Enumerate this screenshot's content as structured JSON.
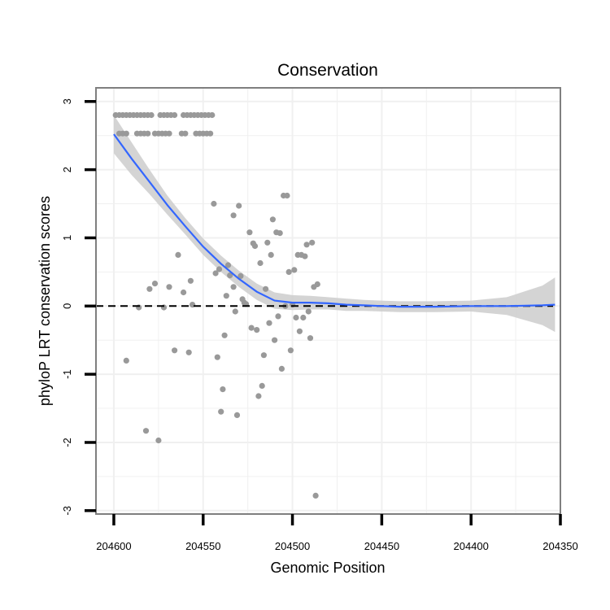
{
  "chart_data": {
    "type": "scatter",
    "title": "Conservation",
    "xlabel": "Genomic Position",
    "ylabel": "phyloP LRT conservation scores",
    "x_reversed": true,
    "xlim": [
      204350,
      204610
    ],
    "ylim": [
      -3.05,
      3.2
    ],
    "x_ticks": [
      204600,
      204550,
      204500,
      204450,
      204400,
      204350
    ],
    "y_ticks": [
      -3,
      -2,
      -1,
      0,
      1,
      2,
      3
    ],
    "grid": true,
    "reference_line": {
      "y": 0,
      "style": "dashed"
    },
    "colors": {
      "points": "#999999",
      "smooth": "#3366ff",
      "band": "#cccccc",
      "panel_border": "#7f7f7f",
      "grid": "#f0f0f0"
    },
    "points": [
      [
        204599,
        2.8
      ],
      [
        204597,
        2.8
      ],
      [
        204595,
        2.8
      ],
      [
        204593,
        2.8
      ],
      [
        204591,
        2.8
      ],
      [
        204589,
        2.8
      ],
      [
        204587,
        2.8
      ],
      [
        204585,
        2.8
      ],
      [
        204583,
        2.8
      ],
      [
        204581,
        2.8
      ],
      [
        204579,
        2.8
      ],
      [
        204574,
        2.8
      ],
      [
        204572,
        2.8
      ],
      [
        204570,
        2.8
      ],
      [
        204568,
        2.8
      ],
      [
        204566,
        2.8
      ],
      [
        204561,
        2.8
      ],
      [
        204559,
        2.8
      ],
      [
        204557,
        2.8
      ],
      [
        204555,
        2.8
      ],
      [
        204553,
        2.8
      ],
      [
        204551,
        2.8
      ],
      [
        204549,
        2.8
      ],
      [
        204547,
        2.8
      ],
      [
        204545,
        2.8
      ],
      [
        204597,
        2.53
      ],
      [
        204595,
        2.53
      ],
      [
        204593,
        2.53
      ],
      [
        204587,
        2.53
      ],
      [
        204585,
        2.53
      ],
      [
        204583,
        2.53
      ],
      [
        204581,
        2.53
      ],
      [
        204577,
        2.53
      ],
      [
        204575,
        2.53
      ],
      [
        204573,
        2.53
      ],
      [
        204571,
        2.53
      ],
      [
        204569,
        2.53
      ],
      [
        204562,
        2.53
      ],
      [
        204560,
        2.53
      ],
      [
        204554,
        2.53
      ],
      [
        204552,
        2.53
      ],
      [
        204550,
        2.53
      ],
      [
        204548,
        2.53
      ],
      [
        204546,
        2.53
      ],
      [
        204593,
        -0.8
      ],
      [
        204586,
        -0.02
      ],
      [
        204582,
        -1.83
      ],
      [
        204580,
        0.25
      ],
      [
        204577,
        0.33
      ],
      [
        204575,
        -1.97
      ],
      [
        204572,
        -0.02
      ],
      [
        204569,
        0.28
      ],
      [
        204566,
        -0.65
      ],
      [
        204564,
        0.75
      ],
      [
        204561,
        0.2
      ],
      [
        204558,
        -0.68
      ],
      [
        204557,
        0.37
      ],
      [
        204556,
        0.02
      ],
      [
        204544,
        1.5
      ],
      [
        204543,
        0.48
      ],
      [
        204542,
        -0.75
      ],
      [
        204541,
        0.54
      ],
      [
        204540,
        -1.55
      ],
      [
        204539,
        -1.22
      ],
      [
        204538,
        -0.43
      ],
      [
        204537,
        0.15
      ],
      [
        204536,
        0.6
      ],
      [
        204535,
        0.45
      ],
      [
        204533,
        1.33
      ],
      [
        204533,
        0.28
      ],
      [
        204532,
        -0.08
      ],
      [
        204531,
        -1.6
      ],
      [
        204530,
        1.47
      ],
      [
        204529,
        0.44
      ],
      [
        204528,
        0.1
      ],
      [
        204527,
        0.05
      ],
      [
        204526,
        0.03
      ],
      [
        204524,
        1.08
      ],
      [
        204523,
        -0.32
      ],
      [
        204522,
        0.92
      ],
      [
        204521,
        0.88
      ],
      [
        204520,
        -0.35
      ],
      [
        204519,
        -1.32
      ],
      [
        204518,
        0.63
      ],
      [
        204517,
        -1.17
      ],
      [
        204516,
        -0.72
      ],
      [
        204515,
        0.25
      ],
      [
        204514,
        0.93
      ],
      [
        204513,
        -0.25
      ],
      [
        204512,
        0.75
      ],
      [
        204511,
        1.27
      ],
      [
        204510,
        -0.5
      ],
      [
        204509,
        1.08
      ],
      [
        204508,
        -0.15
      ],
      [
        204507,
        1.07
      ],
      [
        204506,
        -0.92
      ],
      [
        204505,
        1.62
      ],
      [
        204504,
        0.0
      ],
      [
        204503,
        1.62
      ],
      [
        204502,
        0.5
      ],
      [
        204501,
        -0.65
      ],
      [
        204500,
        0.02
      ],
      [
        204499,
        0.53
      ],
      [
        204498,
        -0.17
      ],
      [
        204497,
        0.75
      ],
      [
        204496,
        -0.37
      ],
      [
        204495,
        0.75
      ],
      [
        204494,
        -0.17
      ],
      [
        204493,
        0.73
      ],
      [
        204492,
        0.9
      ],
      [
        204491,
        -0.08
      ],
      [
        204490,
        -0.47
      ],
      [
        204489,
        0.93
      ],
      [
        204488,
        0.28
      ],
      [
        204487,
        -2.78
      ],
      [
        204486,
        0.32
      ]
    ],
    "smooth": [
      [
        204600,
        2.52
      ],
      [
        204590,
        2.16
      ],
      [
        204580,
        1.82
      ],
      [
        204570,
        1.48
      ],
      [
        204560,
        1.17
      ],
      [
        204550,
        0.87
      ],
      [
        204540,
        0.62
      ],
      [
        204530,
        0.4
      ],
      [
        204520,
        0.21
      ],
      [
        204510,
        0.08
      ],
      [
        204500,
        0.05
      ],
      [
        204490,
        0.05
      ],
      [
        204480,
        0.04
      ],
      [
        204470,
        0.02
      ],
      [
        204460,
        0.01
      ],
      [
        204450,
        0.0
      ],
      [
        204440,
        -0.01
      ],
      [
        204420,
        -0.01
      ],
      [
        204400,
        0.0
      ],
      [
        204380,
        0.0
      ],
      [
        204360,
        0.01
      ],
      [
        204353,
        0.02
      ]
    ],
    "band_upper": [
      [
        204600,
        2.8
      ],
      [
        204590,
        2.4
      ],
      [
        204580,
        2.0
      ],
      [
        204570,
        1.62
      ],
      [
        204560,
        1.29
      ],
      [
        204550,
        0.99
      ],
      [
        204540,
        0.74
      ],
      [
        204530,
        0.52
      ],
      [
        204520,
        0.33
      ],
      [
        204510,
        0.2
      ],
      [
        204500,
        0.16
      ],
      [
        204490,
        0.15
      ],
      [
        204480,
        0.13
      ],
      [
        204470,
        0.11
      ],
      [
        204460,
        0.09
      ],
      [
        204450,
        0.08
      ],
      [
        204440,
        0.07
      ],
      [
        204420,
        0.07
      ],
      [
        204400,
        0.08
      ],
      [
        204380,
        0.13
      ],
      [
        204360,
        0.3
      ],
      [
        204353,
        0.42
      ]
    ],
    "band_lower": [
      [
        204600,
        2.24
      ],
      [
        204590,
        1.92
      ],
      [
        204580,
        1.64
      ],
      [
        204570,
        1.34
      ],
      [
        204560,
        1.05
      ],
      [
        204550,
        0.75
      ],
      [
        204540,
        0.5
      ],
      [
        204530,
        0.28
      ],
      [
        204520,
        0.09
      ],
      [
        204510,
        -0.04
      ],
      [
        204500,
        -0.06
      ],
      [
        204490,
        -0.05
      ],
      [
        204480,
        -0.05
      ],
      [
        204470,
        -0.07
      ],
      [
        204460,
        -0.07
      ],
      [
        204450,
        -0.08
      ],
      [
        204440,
        -0.09
      ],
      [
        204420,
        -0.09
      ],
      [
        204400,
        -0.08
      ],
      [
        204380,
        -0.13
      ],
      [
        204360,
        -0.28
      ],
      [
        204353,
        -0.38
      ]
    ]
  }
}
